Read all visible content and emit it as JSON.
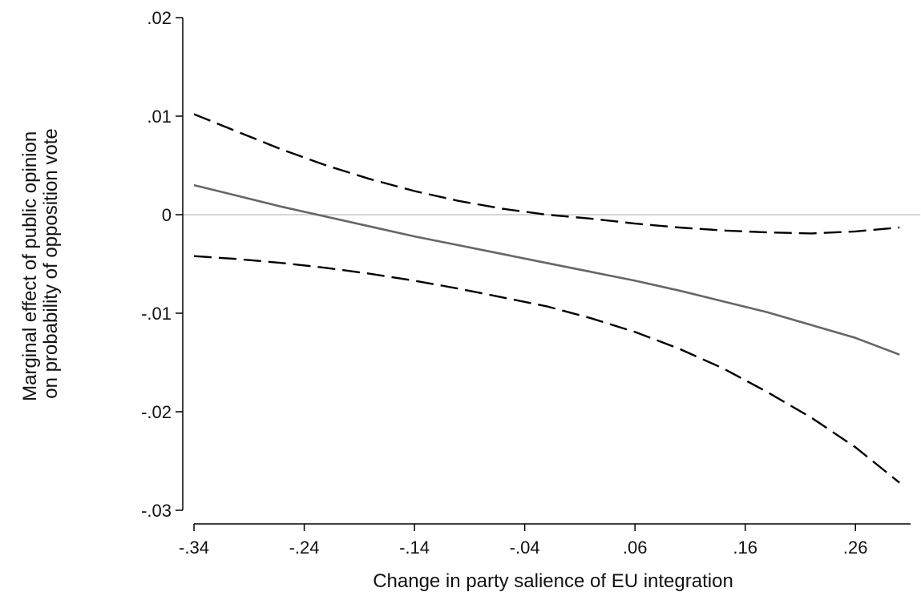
{
  "chart_data": {
    "type": "line",
    "title": "",
    "xlabel": "Change in party salience of EU integration",
    "ylabel_lines": [
      "Marginal effect of public opinion",
      "on probability of opposition vote"
    ],
    "xlim": [
      -0.34,
      0.31
    ],
    "ylim": [
      -0.03,
      0.02
    ],
    "x_ticks": [
      {
        "value": -0.34,
        "label": "-.34"
      },
      {
        "value": -0.24,
        "label": "-.24"
      },
      {
        "value": -0.14,
        "label": "-.14"
      },
      {
        "value": -0.04,
        "label": "-.04"
      },
      {
        "value": 0.06,
        "label": ".06"
      },
      {
        "value": 0.16,
        "label": ".16"
      },
      {
        "value": 0.26,
        "label": ".26"
      }
    ],
    "y_ticks": [
      {
        "value": 0.02,
        "label": ".02"
      },
      {
        "value": 0.01,
        "label": ".01"
      },
      {
        "value": 0.0,
        "label": "0"
      },
      {
        "value": -0.01,
        "label": "-.01"
      },
      {
        "value": -0.02,
        "label": "-.02"
      },
      {
        "value": -0.03,
        "label": "-.03"
      }
    ],
    "reference_line": {
      "y": 0,
      "color": "#c8c8c8"
    },
    "grid": false,
    "series": [
      {
        "role": "upper-ci",
        "style": "dashed",
        "color": "#000000",
        "x": [
          -0.34,
          -0.3,
          -0.26,
          -0.22,
          -0.18,
          -0.14,
          -0.1,
          -0.06,
          -0.02,
          0.02,
          0.06,
          0.1,
          0.14,
          0.18,
          0.22,
          0.26,
          0.3
        ],
        "y": [
          0.0102,
          0.0084,
          0.0066,
          0.005,
          0.0036,
          0.0024,
          0.0014,
          0.0006,
          0.0,
          -0.0004,
          -0.0009,
          -0.0013,
          -0.0016,
          -0.0018,
          -0.0019,
          -0.0017,
          -0.0013
        ]
      },
      {
        "role": "estimate",
        "style": "solid",
        "color": "#666666",
        "x": [
          -0.34,
          -0.3,
          -0.26,
          -0.22,
          -0.18,
          -0.14,
          -0.1,
          -0.06,
          -0.02,
          0.02,
          0.06,
          0.1,
          0.14,
          0.18,
          0.22,
          0.26,
          0.3
        ],
        "y": [
          0.003,
          0.0019,
          0.0008,
          -0.0002,
          -0.0012,
          -0.0022,
          -0.0031,
          -0.004,
          -0.0049,
          -0.0058,
          -0.0067,
          -0.0077,
          -0.0088,
          -0.0099,
          -0.0112,
          -0.0125,
          -0.0142
        ]
      },
      {
        "role": "lower-ci",
        "style": "dashed",
        "color": "#000000",
        "x": [
          -0.34,
          -0.3,
          -0.26,
          -0.22,
          -0.18,
          -0.14,
          -0.1,
          -0.06,
          -0.02,
          0.02,
          0.06,
          0.1,
          0.14,
          0.18,
          0.22,
          0.26,
          0.3
        ],
        "y": [
          -0.0042,
          -0.0045,
          -0.0049,
          -0.0054,
          -0.006,
          -0.0067,
          -0.0075,
          -0.0084,
          -0.0093,
          -0.0105,
          -0.0119,
          -0.0136,
          -0.0156,
          -0.018,
          -0.0206,
          -0.0236,
          -0.0272
        ]
      }
    ]
  }
}
